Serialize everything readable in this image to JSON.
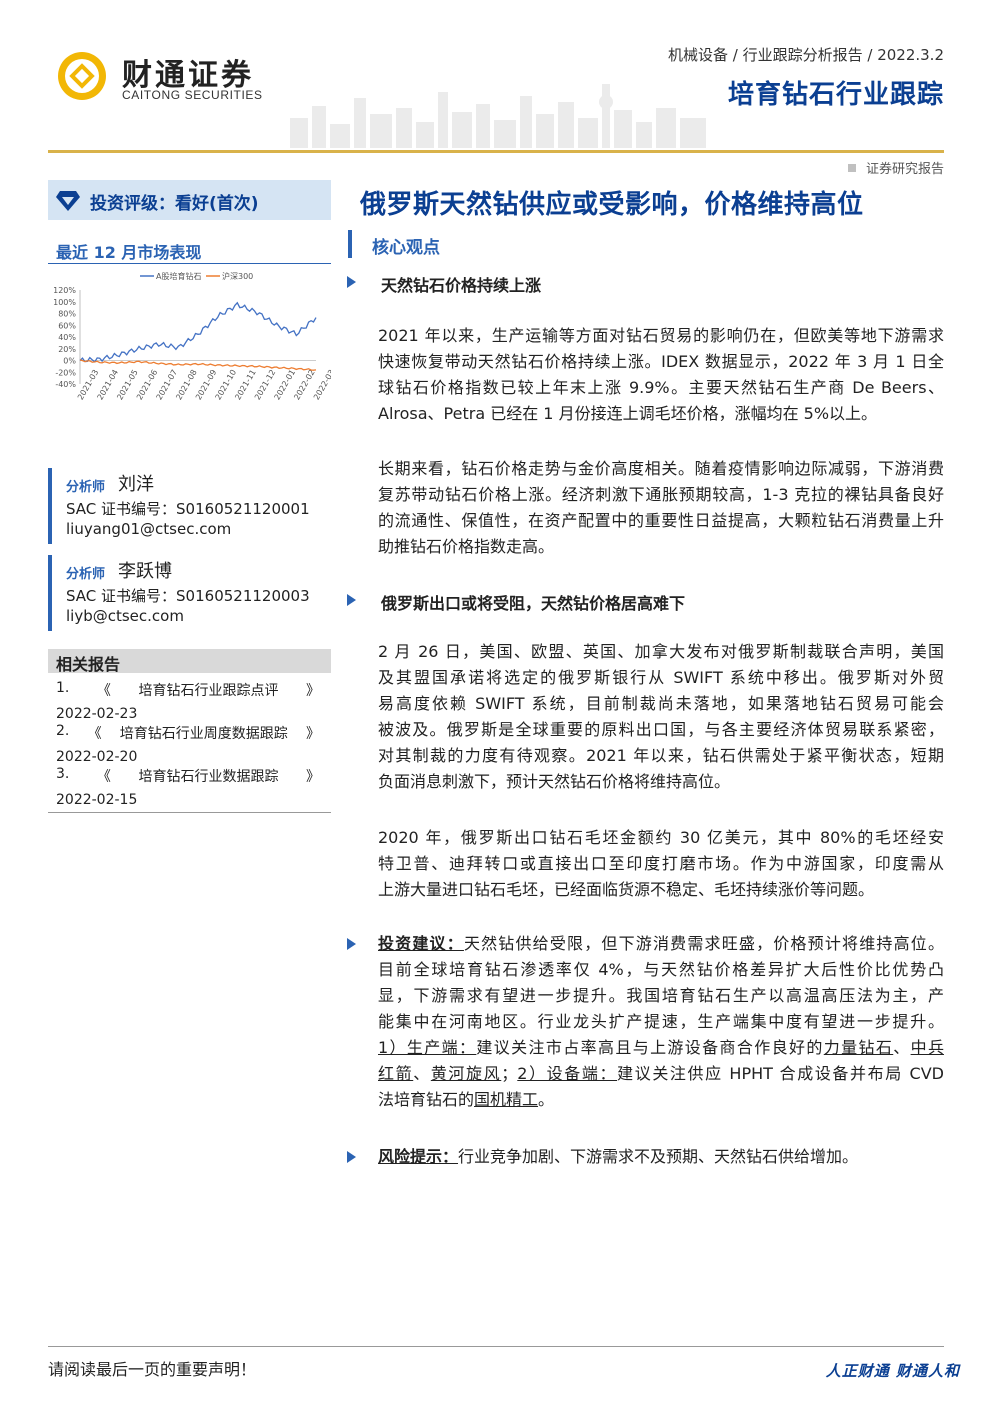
{
  "header": {
    "company_cn": "财通证券",
    "company_en": "CAITONG SECURITIES",
    "meta": "机械设备 / 行业跟踪分析报告 / 2022.3.2",
    "report_series": "培育钻石行业跟踪",
    "doc_type": "证券研究报告"
  },
  "sidebar": {
    "rating": "投资评级：看好(首次)",
    "performance_title": "最近 12 月市场表现",
    "analysts": [
      {
        "role": "分析师",
        "name": "刘洋",
        "sac": "SAC 证书编号：S0160521120001",
        "email": "liuyang01@ctsec.com"
      },
      {
        "role": "分析师",
        "name": "李跃博",
        "sac": "SAC 证书编号：S0160521120003",
        "email": "liyb@ctsec.com"
      }
    ],
    "related_title": "相关报告",
    "related": [
      {
        "num": "1.",
        "open": "《",
        "title": "培育钻石行业跟踪点评",
        "close": "》",
        "date": "2022-02-23"
      },
      {
        "num": "2.",
        "open": "《",
        "title": "培育钻石行业周度数据跟踪",
        "close": "》",
        "date": "2022-02-20"
      },
      {
        "num": "3.",
        "open": "《",
        "title": "培育钻石行业数据跟踪",
        "close": "》",
        "date": "2022-02-15"
      }
    ]
  },
  "chart_data": {
    "type": "line",
    "title": "",
    "legend": [
      "A股培育钻石",
      "沪深300"
    ],
    "legend_position": "top",
    "x": [
      "2021-03",
      "2021-04",
      "2021-05",
      "2021-06",
      "2021-07",
      "2021-08",
      "2021-09",
      "2021-10",
      "2021-11",
      "2021-12",
      "2022-01",
      "2022-02",
      "2022-03"
    ],
    "yticks": [
      "120%",
      "100%",
      "80%",
      "60%",
      "40%",
      "20%",
      "0%",
      "-20%",
      "-40%"
    ],
    "ylim": [
      -40,
      120
    ],
    "series": [
      {
        "name": "A股培育钻石",
        "color": "#4472c4",
        "values": [
          0,
          2,
          10,
          20,
          28,
          22,
          45,
          75,
          95,
          82,
          60,
          45,
          73
        ]
      },
      {
        "name": "沪深300",
        "color": "#ed7d31",
        "values": [
          0,
          -3,
          -4,
          -2,
          -5,
          -7,
          -6,
          -8,
          -9,
          -10,
          -12,
          -14,
          -16
        ]
      }
    ],
    "grid": false
  },
  "main": {
    "title": "俄罗斯天然钻供应或受影响，价格维持高位",
    "section_label": "核心观点",
    "sub1": "天然钻石价格持续上涨",
    "p1": [
      "2021 年以来，生产运输等方面对钻石贸易的影响仍在，但欧美等地下游需求",
      "快速恢复带动天然钻石价格持续上涨。IDEX 数据显示，2022 年 3 月 1 日全",
      "球钻石价格指数已较上年末上涨 9.9%。主要天然钻石生产商 De Beers、",
      "Alrosa、Petra 已经在 1 月份接连上调毛坯价格，涨幅均在 5%以上。"
    ],
    "p2": [
      "长期来看，钻石价格走势与金价高度相关。随着疫情影响边际减弱，下游消费",
      "复苏带动钻石价格上涨。经济刺激下通胀预期较高，1-3 克拉的裸钻具备良好",
      "的流通性、保值性，在资产配置中的重要性日益提高，大颗粒钻石消费量上升",
      "助推钻石价格指数走高。"
    ],
    "sub2": "俄罗斯出口或将受阻，天然钻价格居高难下",
    "p3": [
      "2 月 26 日，美国、欧盟、英国、加拿大发布对俄罗斯制裁联合声明，美国",
      "及其盟国承诺将选定的俄罗斯银行从 SWIFT 系统中移出。俄罗斯对外贸",
      "易高度依赖 SWIFT 系统，目前制裁尚未落地，如果落地钻石贸易可能会",
      "被波及。俄罗斯是全球重要的原料出口国，与各主要经济体贸易联系紧密，",
      "对其制裁的力度有待观察。2021 年以来，钻石供需处于紧平衡状态，短期",
      "负面消息刺激下，预计天然钻石价格将维持高位。"
    ],
    "p4": [
      "2020 年，俄罗斯出口钻石毛坯金额约 30 亿美元，其中 80%的毛坯经安",
      "特卫普、迪拜转口或直接出口至印度打磨市场。作为中游国家，印度需从",
      "上游大量进口钻石毛坯，已经面临货源不稳定、毛坯持续涨价等问题。"
    ],
    "advice": {
      "label": "投资建议：",
      "line1": "天然钻供给受限，但下游消费需求旺盛，价格预计将维持高位。",
      "lines": [
        "目前全球培育钻石渗透率仅 4%，与天然钻价格差异扩大后性价比优势凸",
        "显，下游需求有望进一步提升。我国培育钻石生产以高温高压法为主，产",
        "能集中在河南地区。行业龙头扩产提速，生产端集中度有望进一步提升。"
      ],
      "l5a": "1）生产端：",
      "l5b": "建议关注市占率高且与上游设备商合作良好的",
      "l5c": "力量钻石",
      "l5d": "、",
      "l5e": "中兵",
      "l6a": "红箭",
      "l6b": "、",
      "l6c": "黄河旋风",
      "l6d": "；",
      "l6e": "2）设备端：",
      "l6f": "建议关注供应 HPHT 合成设备并布局 CVD",
      "l7a": "法培育钻石的",
      "l7b": "国机精工",
      "l7c": "。"
    },
    "risk": {
      "label": "风险提示：",
      "text": "行业竞争加剧、下游需求不及预期、天然钻石供给增加。"
    }
  },
  "footer": {
    "notice": "请阅读最后一页的重要声明！",
    "slogan": "人正财通  财通人和"
  }
}
